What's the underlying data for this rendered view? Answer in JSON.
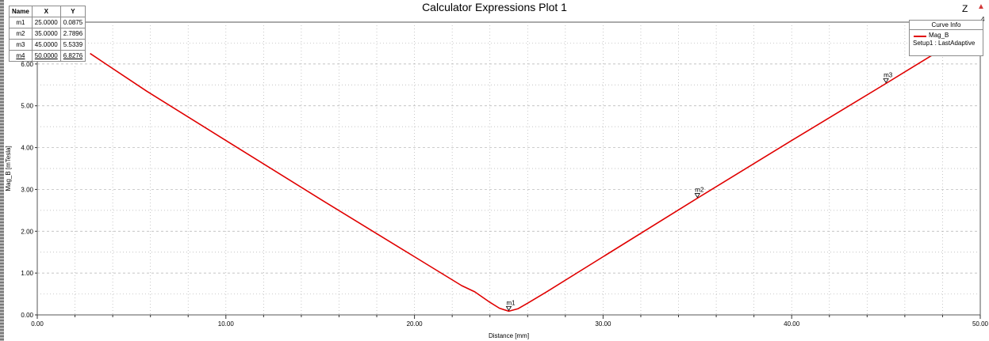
{
  "chart_data": {
    "type": "line",
    "title": "Calculator Expressions Plot 1",
    "xlabel": "Distance [mm]",
    "ylabel": "Mag_B [mTesla]",
    "xlim": [
      0,
      50
    ],
    "ylim": [
      0,
      7
    ],
    "x_ticks": [
      "0.00",
      "10.00",
      "20.00",
      "30.00",
      "40.00",
      "50.00"
    ],
    "y_ticks": [
      "0.00",
      "1.00",
      "2.00",
      "3.00",
      "4.00",
      "5.00",
      "6.00"
    ],
    "grid": true,
    "legend_position": "top-right",
    "series": [
      {
        "name": "Mag_B",
        "color": "#e00000",
        "x": [
          2.8,
          5.8,
          10,
          15,
          20,
          22.5,
          23.2,
          24,
          24.5,
          25,
          25.5,
          26,
          27,
          30,
          35,
          40,
          45,
          48.5
        ],
        "y": [
          6.25,
          5.35,
          4.17,
          2.77,
          1.39,
          0.7,
          0.55,
          0.3,
          0.16,
          0.0875,
          0.15,
          0.28,
          0.55,
          1.39,
          2.7896,
          4.17,
          5.5339,
          6.5
        ]
      }
    ],
    "markers": [
      {
        "name": "m1",
        "x": 25.0,
        "y": 0.0875
      },
      {
        "name": "m2",
        "x": 35.0,
        "y": 2.7896
      },
      {
        "name": "m3",
        "x": 45.0,
        "y": 5.5339
      }
    ]
  },
  "marker_table": {
    "headers": [
      "Name",
      "X",
      "Y"
    ],
    "rows": [
      [
        "m1",
        "25.0000",
        "0.0875"
      ],
      [
        "m2",
        "35.0000",
        "2.7896"
      ],
      [
        "m3",
        "45.0000",
        "5.5339"
      ],
      [
        "m4",
        "50.0000",
        "6.8276"
      ]
    ]
  },
  "legend": {
    "title": "Curve Info",
    "series_label": "Mag_B",
    "setup_label": "Setup1 : LastAdaptive"
  },
  "corner": {
    "z_label": "Z",
    "arrow": "▲",
    "digit": "4"
  },
  "colors": {
    "curve": "#e00000",
    "grid": "#b0b0b0"
  }
}
